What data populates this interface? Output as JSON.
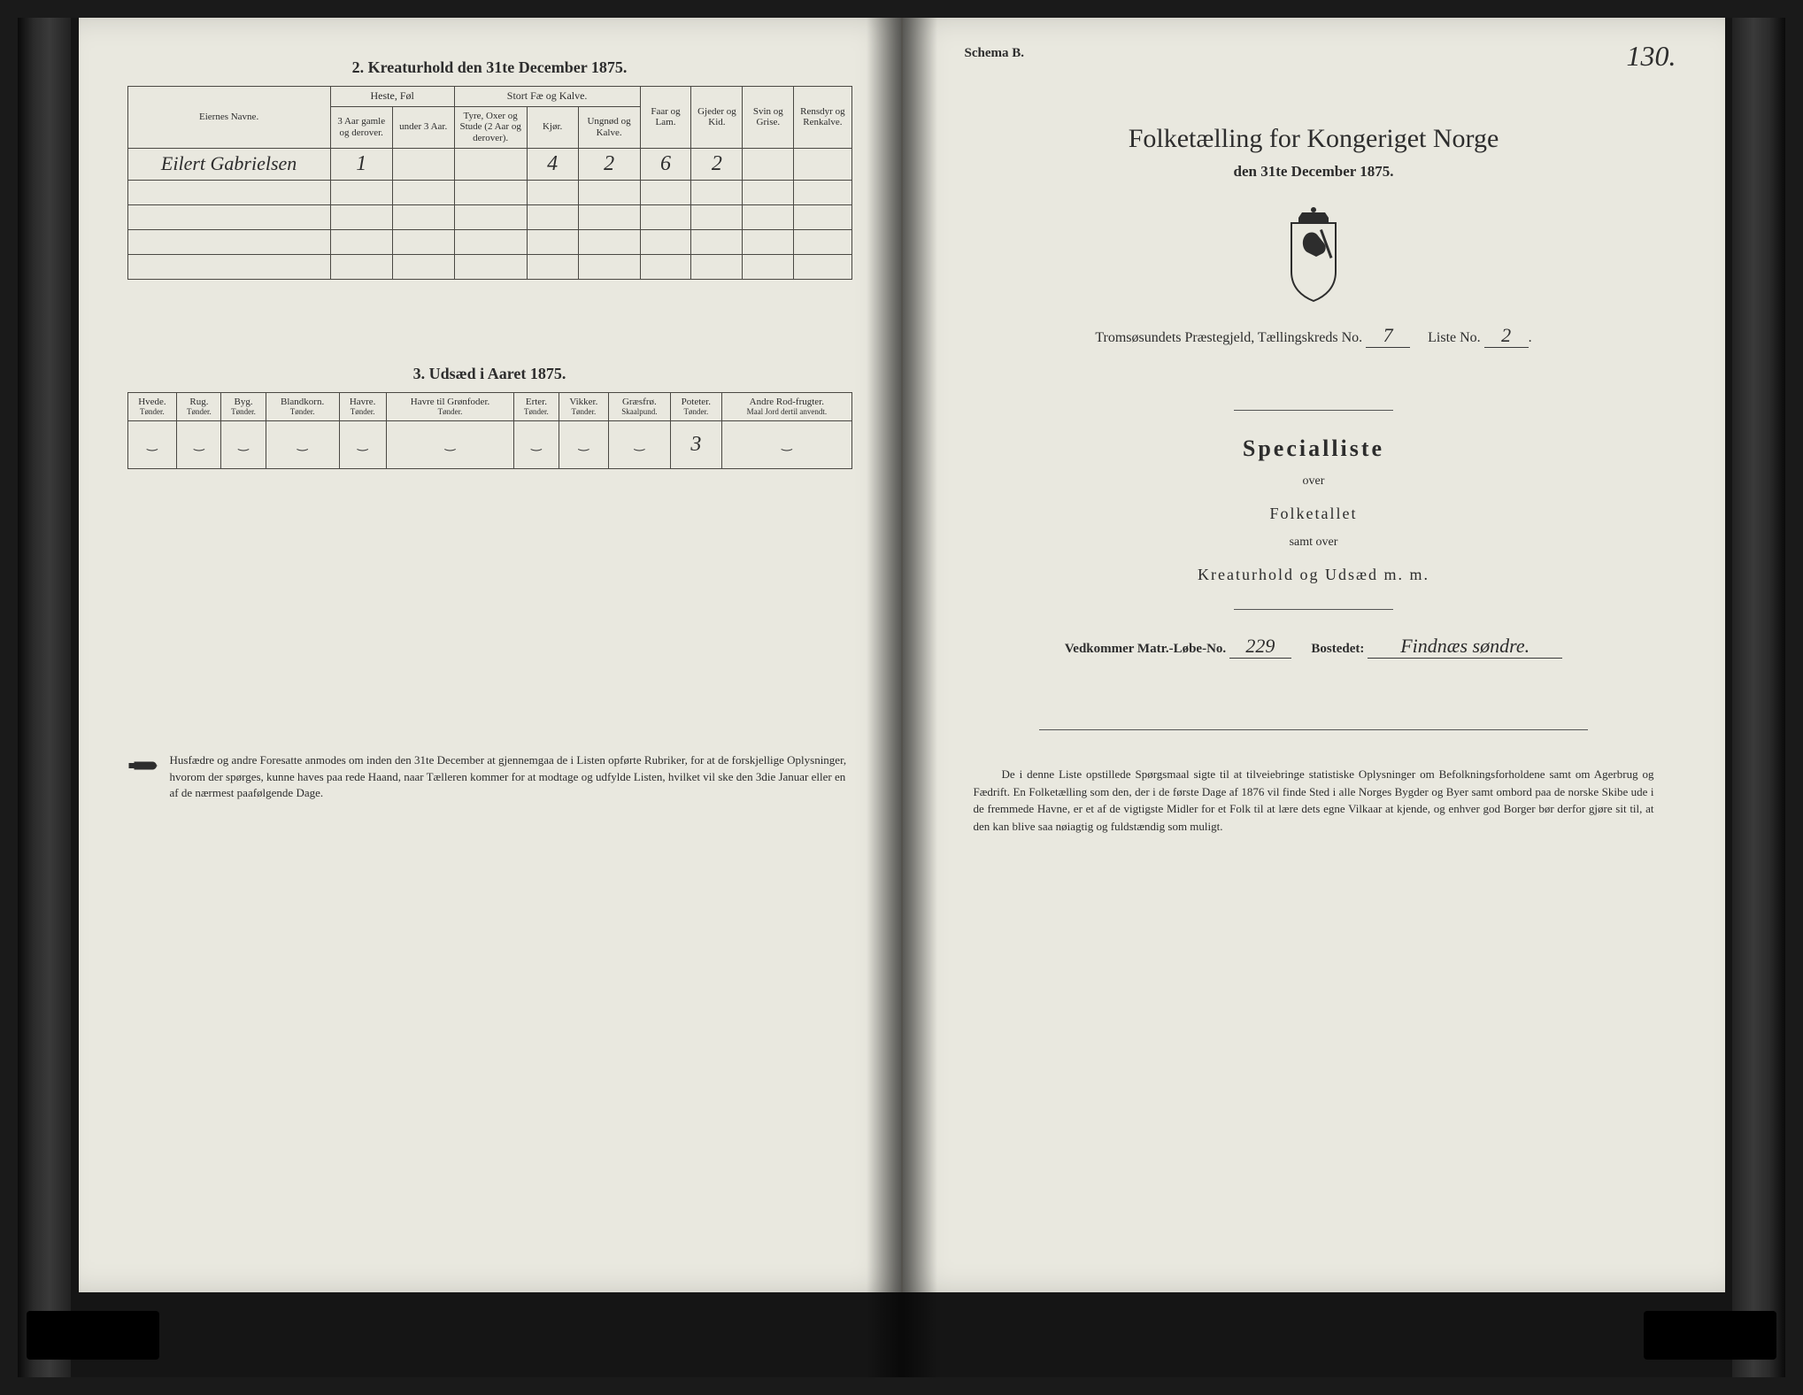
{
  "left": {
    "section2_title": "2. Kreaturhold den 31te December 1875.",
    "t2": {
      "owner_header": "Eiernes Navne.",
      "groups": {
        "heste": "Heste, Føl",
        "stort": "Stort Fæ og Kalve.",
        "faar": "Faar og Lam.",
        "gjeder": "Gjeder og Kid.",
        "svin": "Svin og Grise.",
        "rens": "Rensdyr og Renkalve."
      },
      "cols": {
        "h1": "3 Aar gamle og derover.",
        "h2": "under 3 Aar.",
        "s1": "Tyre, Oxer og Stude (2 Aar og derover).",
        "s2": "Kjør.",
        "s3": "Ungnød og Kalve."
      },
      "row": {
        "owner": "Eilert Gabrielsen",
        "h1": "1",
        "h2": "",
        "s1": "",
        "s2": "4",
        "s3": "2",
        "faar": "6",
        "gjeder": "2",
        "svin": "",
        "rens": ""
      }
    },
    "section3_title": "3. Udsæd i Aaret 1875.",
    "t3": {
      "cols": [
        "Hvede.",
        "Rug.",
        "Byg.",
        "Blandkorn.",
        "Havre.",
        "Havre til Grønfoder.",
        "Erter.",
        "Vikker.",
        "Græsfrø.",
        "Poteter.",
        "Andre Rod-frugter."
      ],
      "units": [
        "Tønder.",
        "Tønder.",
        "Tønder.",
        "Tønder.",
        "Tønder.",
        "Tønder.",
        "Tønder.",
        "Tønder.",
        "Skaalpund.",
        "Tønder.",
        "Maal Jord dertil anvendt."
      ],
      "row": [
        "",
        "",
        "",
        "",
        "",
        "",
        "",
        "",
        "",
        "3",
        ""
      ]
    },
    "note": "Husfædre og andre Foresatte anmodes om inden den 31te December at gjennemgaa de i Listen opførte Rubriker, for at de forskjellige Oplysninger, hvorom der spørges, kunne haves paa rede Haand, naar Tælleren kommer for at modtage og udfylde Listen, hvilket vil ske den 3die Januar eller en af de nærmest paafølgende Dage."
  },
  "right": {
    "schema": "Schema B.",
    "folio": "130.",
    "title": "Folketælling for Kongeriget Norge",
    "subtitle": "den 31te December 1875.",
    "fields_line1_prefix": "Tromsøsundets Præstegjeld, Tællingskreds No.",
    "kreds": "7",
    "liste_label": "Liste No.",
    "liste": "2",
    "specialliste": "Specialliste",
    "over": "over",
    "folketallet": "Folketallet",
    "samt_over": "samt over",
    "kreatur": "Kreaturhold og Udsæd m. m.",
    "matr_label": "Vedkommer Matr.-Løbe-No.",
    "matr": "229",
    "bosted_label": "Bostedet:",
    "bosted": "Findnæs søndre.",
    "para": "De i denne Liste opstillede Spørgsmaal sigte til at tilveiebringe statistiske Oplysninger om Befolkningsforholdene samt om Agerbrug og Fædrift. En Folketælling som den, der i de første Dage af 1876 vil finde Sted i alle Norges Bygder og Byer samt ombord paa de norske Skibe ude i de fremmede Havne, er et af de vigtigste Midler for et Folk til at lære dets egne Vilkaar at kjende, og enhver god Borger bør derfor gjøre sit til, at den kan blive saa nøiagtig og fuldstændig som muligt."
  },
  "colors": {
    "page_bg": "#e9e8df",
    "ink": "#2d2d2d",
    "border": "#4a4843"
  }
}
